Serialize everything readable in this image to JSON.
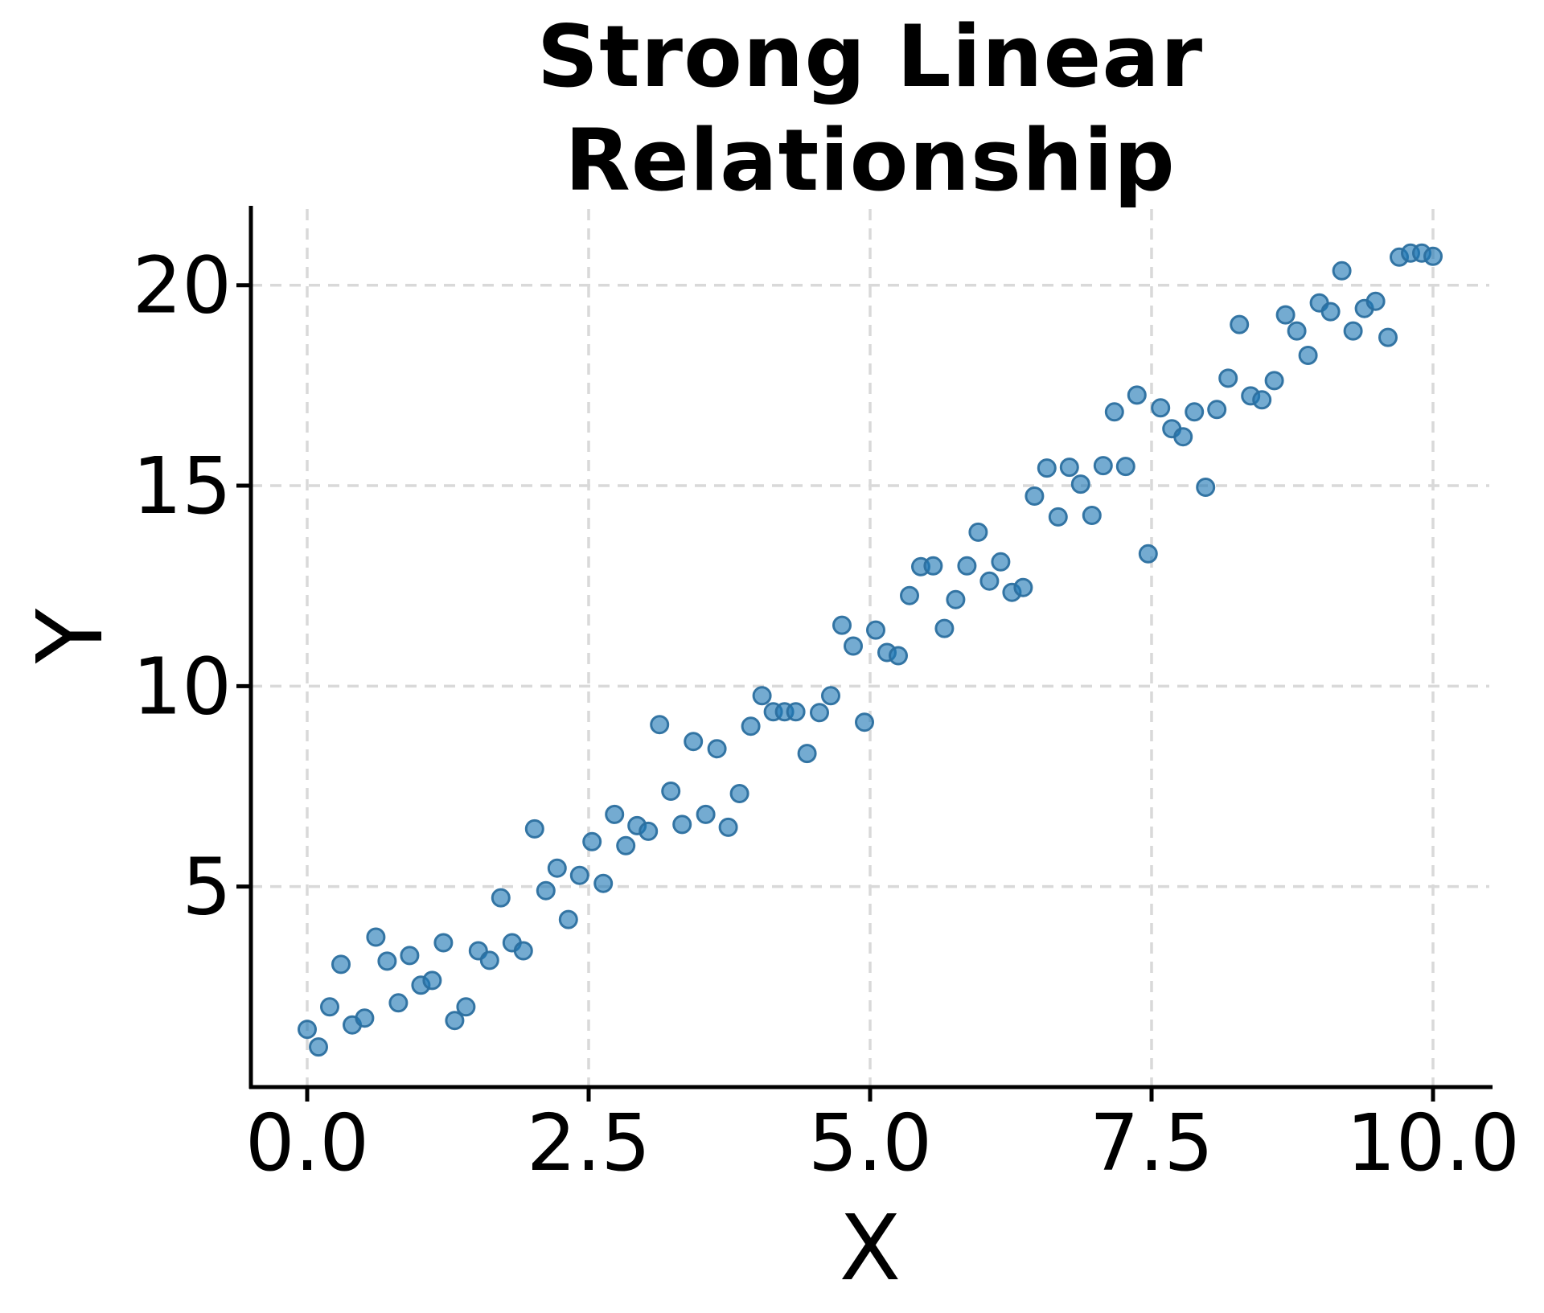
{
  "title": {
    "text": "Strong Linear Relationship",
    "lines": [
      "Strong Linear",
      "Relationship"
    ]
  },
  "axes": {
    "x_label": "X",
    "y_label": "Y"
  },
  "colors": {
    "marker_fill": "#1f77b4",
    "marker_fill_opacity": 0.62,
    "marker_edge": "#2b6f9f",
    "grid": "#d9d9d9",
    "spine": "#000000",
    "text": "#000000"
  },
  "chart_data": {
    "type": "scatter",
    "title": "Strong Linear Relationship",
    "xlabel": "X",
    "ylabel": "Y",
    "xlim": [
      -0.5,
      10.5
    ],
    "ylim": [
      0,
      21.9
    ],
    "grid": "dashed, light gray, on both axes at major ticks",
    "legend": "none",
    "x_ticks": [
      0,
      2.5,
      5,
      7.5,
      10
    ],
    "x_tick_labels": [
      "0.0",
      "2.5",
      "5.0",
      "7.5",
      "10.0"
    ],
    "y_ticks": [
      5,
      10,
      15,
      20
    ],
    "y_tick_labels": [
      "5",
      "10",
      "15",
      "20"
    ],
    "points": [
      [
        0.0,
        1.44
      ],
      [
        0.1,
        1.0
      ],
      [
        0.2,
        2.0
      ],
      [
        0.3,
        3.06
      ],
      [
        0.4,
        1.55
      ],
      [
        0.51,
        1.72
      ],
      [
        0.61,
        3.74
      ],
      [
        0.71,
        3.14
      ],
      [
        0.81,
        2.1
      ],
      [
        0.91,
        3.28
      ],
      [
        1.01,
        2.54
      ],
      [
        1.11,
        2.66
      ],
      [
        1.21,
        3.6
      ],
      [
        1.31,
        1.66
      ],
      [
        1.41,
        2.0
      ],
      [
        1.52,
        3.4
      ],
      [
        1.62,
        3.16
      ],
      [
        1.72,
        4.72
      ],
      [
        1.82,
        3.6
      ],
      [
        1.92,
        3.4
      ],
      [
        2.02,
        6.44
      ],
      [
        2.12,
        4.9
      ],
      [
        2.22,
        5.46
      ],
      [
        2.32,
        4.18
      ],
      [
        2.42,
        5.28
      ],
      [
        2.53,
        6.12
      ],
      [
        2.63,
        5.08
      ],
      [
        2.73,
        6.8
      ],
      [
        2.83,
        6.02
      ],
      [
        2.93,
        6.52
      ],
      [
        3.03,
        6.38
      ],
      [
        3.13,
        9.04
      ],
      [
        3.23,
        7.38
      ],
      [
        3.33,
        6.55
      ],
      [
        3.43,
        8.62
      ],
      [
        3.54,
        6.8
      ],
      [
        3.64,
        8.44
      ],
      [
        3.74,
        6.48
      ],
      [
        3.84,
        7.32
      ],
      [
        3.94,
        9.0
      ],
      [
        4.04,
        9.76
      ],
      [
        4.14,
        9.36
      ],
      [
        4.24,
        9.36
      ],
      [
        4.34,
        9.36
      ],
      [
        4.44,
        8.32
      ],
      [
        4.55,
        9.34
      ],
      [
        4.65,
        9.76
      ],
      [
        4.75,
        11.52
      ],
      [
        4.85,
        11.0
      ],
      [
        4.95,
        9.1
      ],
      [
        5.05,
        11.4
      ],
      [
        5.15,
        10.84
      ],
      [
        5.25,
        10.76
      ],
      [
        5.35,
        12.26
      ],
      [
        5.45,
        12.98
      ],
      [
        5.56,
        13.0
      ],
      [
        5.66,
        11.44
      ],
      [
        5.76,
        12.16
      ],
      [
        5.86,
        13.0
      ],
      [
        5.96,
        13.84
      ],
      [
        6.06,
        12.62
      ],
      [
        6.16,
        13.1
      ],
      [
        6.26,
        12.34
      ],
      [
        6.36,
        12.46
      ],
      [
        6.46,
        14.74
      ],
      [
        6.57,
        15.44
      ],
      [
        6.67,
        14.22
      ],
      [
        6.77,
        15.46
      ],
      [
        6.87,
        15.04
      ],
      [
        6.97,
        14.26
      ],
      [
        7.07,
        15.5
      ],
      [
        7.17,
        16.84
      ],
      [
        7.27,
        15.48
      ],
      [
        7.37,
        17.26
      ],
      [
        7.47,
        13.3
      ],
      [
        7.58,
        16.94
      ],
      [
        7.68,
        16.42
      ],
      [
        7.78,
        16.22
      ],
      [
        7.88,
        16.84
      ],
      [
        7.98,
        14.96
      ],
      [
        8.08,
        16.9
      ],
      [
        8.18,
        17.68
      ],
      [
        8.28,
        19.02
      ],
      [
        8.38,
        17.24
      ],
      [
        8.48,
        17.14
      ],
      [
        8.59,
        17.62
      ],
      [
        8.69,
        19.26
      ],
      [
        8.79,
        18.86
      ],
      [
        8.89,
        18.25
      ],
      [
        8.99,
        19.56
      ],
      [
        9.09,
        19.34
      ],
      [
        9.19,
        20.36
      ],
      [
        9.29,
        18.86
      ],
      [
        9.39,
        19.42
      ],
      [
        9.49,
        19.6
      ],
      [
        9.6,
        18.7
      ],
      [
        9.7,
        20.7
      ],
      [
        9.8,
        20.8
      ],
      [
        9.9,
        20.8
      ],
      [
        10.0,
        20.72
      ]
    ]
  }
}
